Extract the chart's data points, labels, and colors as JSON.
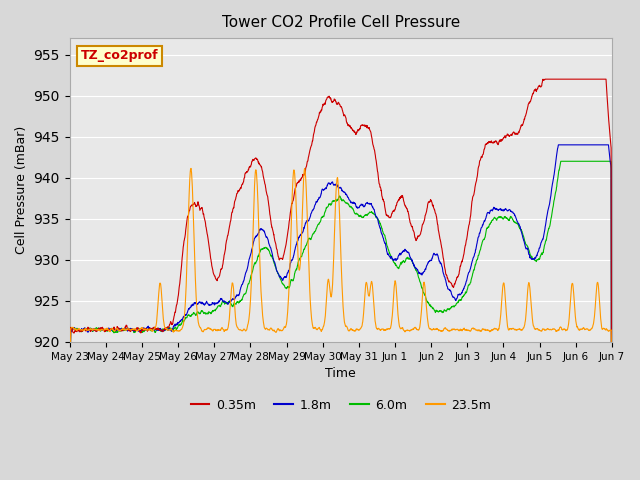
{
  "title": "Tower CO2 Profile Cell Pressure",
  "xlabel": "Time",
  "ylabel": "Cell Pressure (mBar)",
  "ylim": [
    920,
    957
  ],
  "yticks": [
    920,
    925,
    930,
    935,
    940,
    945,
    950,
    955
  ],
  "background_color": "#e8e8e8",
  "plot_bg_color": "#e8e8e8",
  "annotation_text": "TZ_co2prof",
  "annotation_bg": "#ffffcc",
  "annotation_border": "#cc8800",
  "colors": [
    "#cc0000",
    "#0000cc",
    "#00bb00",
    "#ff9900"
  ],
  "xtick_labels": [
    "May 23",
    "May 24",
    "May 25",
    "May 26",
    "May 27",
    "May 28",
    "May 29",
    "May 30",
    "May 31",
    "Jun 1",
    "Jun 2",
    "Jun 3",
    "Jun 4",
    "Jun 5",
    "Jun 6",
    "Jun 7"
  ],
  "legend_colors": [
    "#cc0000",
    "#0000cc",
    "#00bb00",
    "#ff9900"
  ],
  "legend_labels": [
    "0.35m",
    "1.8m",
    "6.0m",
    "23.5m"
  ],
  "base_pressure": 921.5,
  "num_points": 2016
}
